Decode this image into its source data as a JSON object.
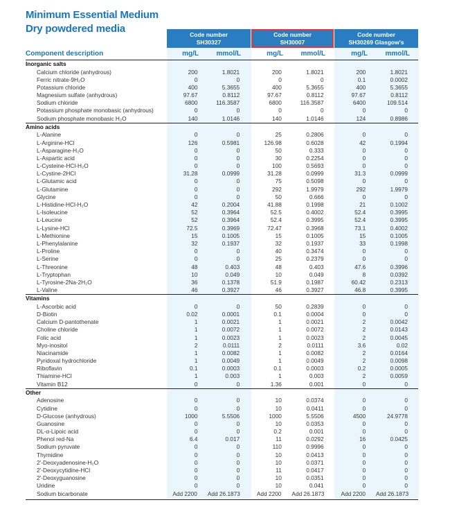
{
  "title": {
    "line1": "Minimum Essential Medium",
    "line2": "Dry powdered media"
  },
  "columns": [
    {
      "label": "Code number",
      "code": "SH30327"
    },
    {
      "label": "Code number",
      "code": "SH30007"
    },
    {
      "label": "Code number",
      "code": "SH30269 Glasgow's"
    }
  ],
  "header": {
    "component": "Component description",
    "mg": "mg/L",
    "mmol": "mmol/L"
  },
  "sections": [
    {
      "name": "Inorganic salts",
      "rows": [
        [
          "Calcium chloride (anhydrous)",
          "200",
          "1.8021",
          "200",
          "1.8021",
          "200",
          "1.8021"
        ],
        [
          "Ferric nitrate-9H₂O",
          "0",
          "0",
          "0",
          "0",
          "0.1",
          "0.0002"
        ],
        [
          "Potassium chloride",
          "400",
          "5.3655",
          "400",
          "5.3655",
          "400",
          "5.3655"
        ],
        [
          "Magnesium sulfate (anhydrous)",
          "97.67",
          "0.8112",
          "97.67",
          "0.8112",
          "97.67",
          "0.8112"
        ],
        [
          "Sodium chloride",
          "6800",
          "116.3587",
          "6800",
          "116.3587",
          "6400",
          "109.514"
        ],
        [
          "Potassium phosphate monobasic (anhydrous)",
          "0",
          "0",
          "0",
          "0",
          "0",
          "0"
        ],
        [
          "Sodium phosphate monobasic H₂O",
          "140",
          "1.0146",
          "140",
          "1.0146",
          "124",
          "0.8986"
        ]
      ]
    },
    {
      "name": "Amino acids",
      "rows": [
        [
          "L-Alanine",
          "0",
          "0",
          "25",
          "0.2806",
          "0",
          "0"
        ],
        [
          "L-Arginine-HCl",
          "126",
          "0.5981",
          "126.98",
          "0.6028",
          "42",
          "0.1994"
        ],
        [
          "L-Asparagine-H₂O",
          "0",
          "0",
          "50",
          "0.333",
          "0",
          "0"
        ],
        [
          "L-Aspartic acid",
          "0",
          "0",
          "30",
          "0.2254",
          "0",
          "0"
        ],
        [
          "L-Cysteine-HCl-H₂O",
          "0",
          "0",
          "100",
          "0.5693",
          "0",
          "0"
        ],
        [
          "L-Cystine-2HCl",
          "31.28",
          "0.0999",
          "31.28",
          "0.0999",
          "31.3",
          "0.0999"
        ],
        [
          "L-Glutamic acid",
          "0",
          "0",
          "75",
          "0.5098",
          "0",
          "0"
        ],
        [
          "L-Glutamine",
          "0",
          "0",
          "292",
          "1.9979",
          "292",
          "1.9979"
        ],
        [
          "Glycine",
          "0",
          "0",
          "50",
          "0.666",
          "0",
          "0"
        ],
        [
          "L-Histidine-HCl-H₂O",
          "42",
          "0.2004",
          "41.88",
          "0.1998",
          "21",
          "0.1002"
        ],
        [
          "L-Isoleucine",
          "52",
          "0.3964",
          "52.5",
          "0.4002",
          "52.4",
          "0.3995"
        ],
        [
          "L-Leucine",
          "52",
          "0.3964",
          "52.4",
          "0.3995",
          "52.4",
          "0.3995"
        ],
        [
          "L-Lysine-HCl",
          "72.5",
          "0.3969",
          "72.47",
          "0.3968",
          "73.1",
          "0.4002"
        ],
        [
          "L-Methionine",
          "15",
          "0.1005",
          "15",
          "0.1005",
          "15",
          "0.1005"
        ],
        [
          "L-Phenylalanine",
          "32",
          "0.1937",
          "32",
          "0.1937",
          "33",
          "0.1998"
        ],
        [
          "L-Proline",
          "0",
          "0",
          "40",
          "0.3474",
          "0",
          "0"
        ],
        [
          "L-Serine",
          "0",
          "0",
          "25",
          "0.2379",
          "0",
          "0"
        ],
        [
          "L-Threonine",
          "48",
          "0.403",
          "48",
          "0.403",
          "47.6",
          "0.3996"
        ],
        [
          "L-Tryptophan",
          "10",
          "0.049",
          "10",
          "0.049",
          "8",
          "0.0392"
        ],
        [
          "L-Tyrosine-2Na-2H₂O",
          "36",
          "0.1378",
          "51.9",
          "0.1987",
          "60.42",
          "0.2313"
        ],
        [
          "L-Valine",
          "46",
          "0.3927",
          "46",
          "0.3927",
          "46.8",
          "0.3995"
        ]
      ]
    },
    {
      "name": "Vitamins",
      "rows": [
        [
          "L-Ascorbic acid",
          "0",
          "0",
          "50",
          "0.2839",
          "0",
          "0"
        ],
        [
          "D-Biotin",
          "0.02",
          "0.0001",
          "0.1",
          "0.0004",
          "0",
          "0"
        ],
        [
          "Calcium D-pantothenate",
          "1",
          "0.0021",
          "1",
          "0.0021",
          "2",
          "0.0042"
        ],
        [
          "Choline chloride",
          "1",
          "0.0072",
          "1",
          "0.0072",
          "2",
          "0.0143"
        ],
        [
          "Folic acid",
          "1",
          "0.0023",
          "1",
          "0.0023",
          "2",
          "0.0045"
        ],
        [
          "Myo-inositol",
          "2",
          "0.0111",
          "2",
          "0.0111",
          "3.6",
          "0.02"
        ],
        [
          "Niacinamide",
          "1",
          "0.0082",
          "1",
          "0.0082",
          "2",
          "0.0164"
        ],
        [
          "Pyridoxal hydrochloride",
          "1",
          "0.0049",
          "1",
          "0.0049",
          "2",
          "0.0098"
        ],
        [
          "Riboflavin",
          "0.1",
          "0.0003",
          "0.1",
          "0.0003",
          "0.2",
          "0.0005"
        ],
        [
          "Thiamine-HCl",
          "1",
          "0.003",
          "1",
          "0.003",
          "2",
          "0.0059"
        ],
        [
          "Vitamin B12",
          "0",
          "0",
          "1.36",
          "0.001",
          "0",
          "0"
        ]
      ]
    },
    {
      "name": "Other",
      "rows": [
        [
          "Adenosine",
          "0",
          "0",
          "10",
          "0.0374",
          "0",
          "0"
        ],
        [
          "Cytidine",
          "0",
          "0",
          "10",
          "0.0411",
          "0",
          "0"
        ],
        [
          "D-Glucose (anhydrous)",
          "1000",
          "5.5506",
          "1000",
          "5.5506",
          "4500",
          "24.9778"
        ],
        [
          "Guanosine",
          "0",
          "0",
          "10",
          "0.0353",
          "0",
          "0"
        ],
        [
          "DL-α-Lipoic acid",
          "0",
          "0",
          "0.2",
          "0.001",
          "0",
          "0"
        ],
        [
          "Phenol red-Na",
          "6.4",
          "0.017",
          "11",
          "0.0292",
          "16",
          "0.0425"
        ],
        [
          "Sodium pyruvate",
          "0",
          "0",
          "110",
          "0.9996",
          "0",
          "0"
        ],
        [
          "Thymidine",
          "0",
          "0",
          "10",
          "0.0413",
          "0",
          "0"
        ],
        [
          "2'-Deoxyadenosine-H₂O",
          "0",
          "0",
          "10",
          "0.0371",
          "0",
          "0"
        ],
        [
          "2'-Deoxycytidine-HCl",
          "0",
          "0",
          "11",
          "0.0417",
          "0",
          "0"
        ],
        [
          "2'-Deoxyguanosine",
          "0",
          "0",
          "10",
          "0.0351",
          "0",
          "0"
        ],
        [
          "Uridine",
          "0",
          "0",
          "10",
          "0.041",
          "0",
          "0"
        ],
        [
          "Sodium bicarbonate",
          "Add 2200",
          "Add 26.1873",
          "Add 2200",
          "Add 26.1873",
          "Add 2200",
          "Add 26.1873"
        ]
      ]
    }
  ]
}
